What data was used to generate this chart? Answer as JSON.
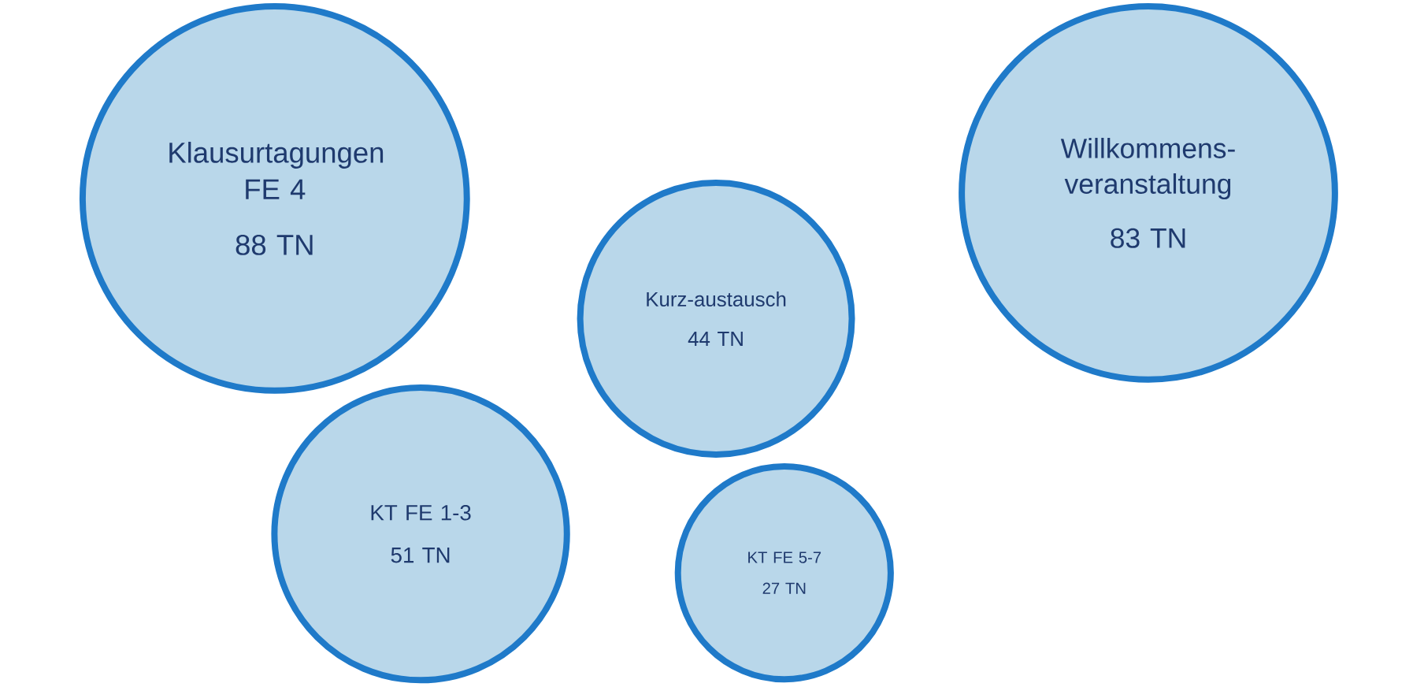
{
  "chart_data": {
    "type": "other",
    "categories": [
      "Klausurtagungen FE 4",
      "KT FE 1-3",
      "Kurz-austausch",
      "KT FE 5-7",
      "Willkommens-veranstaltung"
    ],
    "values": [
      88,
      51,
      44,
      27,
      83
    ],
    "value_labels": [
      "88 TN",
      "51 TN",
      "44 TN",
      "27 TN",
      "83 TN"
    ],
    "colors": [
      "#b9d7ea",
      "#b9d7ea",
      "#b9d7ea",
      "#b9d7ea",
      "#b9d7ea"
    ]
  }
}
